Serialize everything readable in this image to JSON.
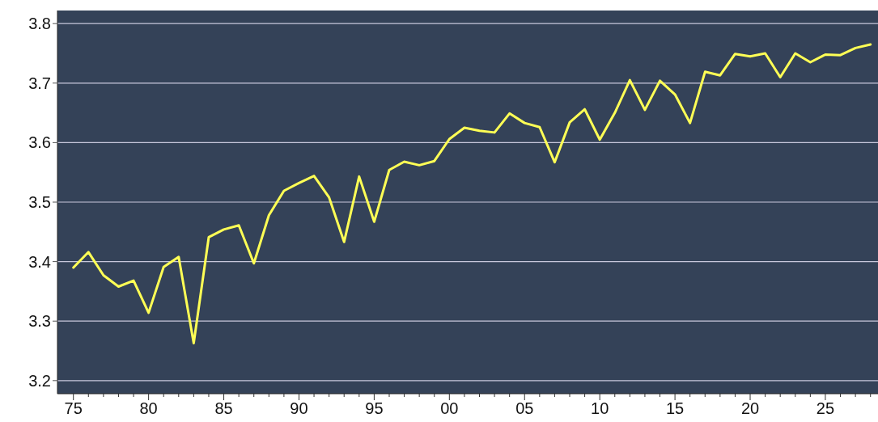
{
  "chart_data": {
    "type": "line",
    "x": [
      1975,
      1976,
      1977,
      1978,
      1979,
      1980,
      1981,
      1982,
      1983,
      1984,
      1985,
      1986,
      1987,
      1988,
      1989,
      1990,
      1991,
      1992,
      1993,
      1994,
      1995,
      1996,
      1997,
      1998,
      1999,
      2000,
      2001,
      2002,
      2003,
      2004,
      2005,
      2006,
      2007,
      2008,
      2009,
      2010,
      2011,
      2012,
      2013,
      2014,
      2015,
      2016,
      2017,
      2018,
      2019,
      2020,
      2021,
      2022,
      2023,
      2024,
      2025,
      2026,
      2027,
      2028
    ],
    "series": [
      {
        "color": "#ffff55",
        "values": [
          3.39,
          3.416,
          3.377,
          3.358,
          3.368,
          3.314,
          3.391,
          3.408,
          3.263,
          3.441,
          3.454,
          3.461,
          3.397,
          3.478,
          3.519,
          3.532,
          3.544,
          3.508,
          3.433,
          3.543,
          3.467,
          3.554,
          3.568,
          3.562,
          3.569,
          3.606,
          3.625,
          3.62,
          3.617,
          3.649,
          3.633,
          3.626,
          3.567,
          3.634,
          3.656,
          3.605,
          3.65,
          3.705,
          3.655,
          3.704,
          3.681,
          3.633,
          3.719,
          3.713,
          3.749,
          3.745,
          3.75,
          3.71,
          3.75,
          3.735,
          3.748,
          3.747,
          3.759,
          3.765
        ]
      }
    ],
    "xlim": [
      1973.94,
      2028.5
    ],
    "xticks": [
      {
        "value": 1975,
        "label": "75"
      },
      {
        "value": 1976,
        "label": null
      },
      {
        "value": 1977,
        "label": null
      },
      {
        "value": 1978,
        "label": null
      },
      {
        "value": 1979,
        "label": null
      },
      {
        "value": 1980,
        "label": "80"
      },
      {
        "value": 1981,
        "label": null
      },
      {
        "value": 1982,
        "label": null
      },
      {
        "value": 1983,
        "label": null
      },
      {
        "value": 1984,
        "label": null
      },
      {
        "value": 1985,
        "label": "85"
      },
      {
        "value": 1986,
        "label": null
      },
      {
        "value": 1987,
        "label": null
      },
      {
        "value": 1988,
        "label": null
      },
      {
        "value": 1989,
        "label": null
      },
      {
        "value": 1990,
        "label": "90"
      },
      {
        "value": 1991,
        "label": null
      },
      {
        "value": 1992,
        "label": null
      },
      {
        "value": 1993,
        "label": null
      },
      {
        "value": 1994,
        "label": null
      },
      {
        "value": 1995,
        "label": "95"
      },
      {
        "value": 1996,
        "label": null
      },
      {
        "value": 1997,
        "label": null
      },
      {
        "value": 1998,
        "label": null
      },
      {
        "value": 1999,
        "label": null
      },
      {
        "value": 2000,
        "label": "00"
      },
      {
        "value": 2001,
        "label": null
      },
      {
        "value": 2002,
        "label": null
      },
      {
        "value": 2003,
        "label": null
      },
      {
        "value": 2004,
        "label": null
      },
      {
        "value": 2005,
        "label": "05"
      },
      {
        "value": 2006,
        "label": null
      },
      {
        "value": 2007,
        "label": null
      },
      {
        "value": 2008,
        "label": null
      },
      {
        "value": 2009,
        "label": null
      },
      {
        "value": 2010,
        "label": "10"
      },
      {
        "value": 2011,
        "label": null
      },
      {
        "value": 2012,
        "label": null
      },
      {
        "value": 2013,
        "label": null
      },
      {
        "value": 2014,
        "label": null
      },
      {
        "value": 2015,
        "label": "15"
      },
      {
        "value": 2016,
        "label": null
      },
      {
        "value": 2017,
        "label": null
      },
      {
        "value": 2018,
        "label": null
      },
      {
        "value": 2019,
        "label": null
      },
      {
        "value": 2020,
        "label": "20"
      },
      {
        "value": 2021,
        "label": null
      },
      {
        "value": 2022,
        "label": null
      },
      {
        "value": 2023,
        "label": null
      },
      {
        "value": 2024,
        "label": null
      },
      {
        "value": 2025,
        "label": "25"
      },
      {
        "value": 2026,
        "label": null
      },
      {
        "value": 2027,
        "label": null
      },
      {
        "value": 2028,
        "label": null
      }
    ],
    "ylim": [
      3.178,
      3.822
    ],
    "yticks": [
      3.2,
      3.3,
      3.4,
      3.5,
      3.6,
      3.7,
      3.8
    ],
    "grid": "y"
  }
}
